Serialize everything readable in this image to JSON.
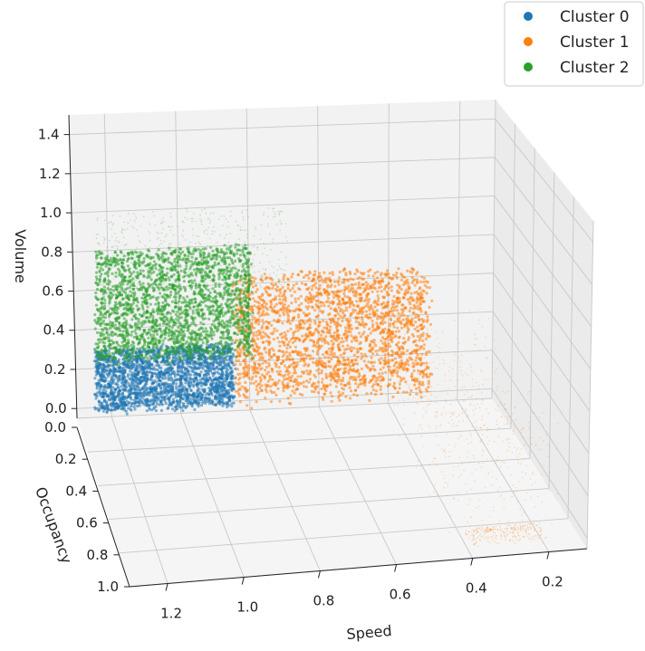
{
  "chart_data": {
    "type": "scatter",
    "projection": "3d",
    "title": "",
    "xlabel": "Speed",
    "ylabel": "Occupancy",
    "zlabel": "Volume",
    "x_ticks": [
      "1.2",
      "1.0",
      "0.8",
      "0.6",
      "0.4",
      "0.2"
    ],
    "y_ticks": [
      "0.0",
      "0.2",
      "0.4",
      "0.6",
      "0.8",
      "1.0"
    ],
    "z_ticks": [
      "0.0",
      "0.2",
      "0.4",
      "0.6",
      "0.8",
      "1.0",
      "1.2",
      "1.4"
    ],
    "xlim": [
      0.1,
      1.3
    ],
    "ylim": [
      0.0,
      1.0
    ],
    "zlim": [
      -0.05,
      1.5
    ],
    "grid": true,
    "legend_position": "top-right",
    "series": [
      {
        "name": "Cluster 0",
        "color": "#1f77b4",
        "regions": [
          {
            "speed": [
              0.85,
              1.25
            ],
            "occupancy": [
              0.0,
              0.05
            ],
            "volume": [
              0.0,
              0.3
            ],
            "density": "high"
          }
        ]
      },
      {
        "name": "Cluster 1",
        "color": "#ff7f0e",
        "regions": [
          {
            "speed": [
              0.3,
              0.85
            ],
            "occupancy": [
              0.0,
              0.12
            ],
            "volume": [
              0.05,
              0.65
            ],
            "density": "high"
          },
          {
            "speed": [
              0.15,
              0.45
            ],
            "occupancy": [
              0.1,
              1.0
            ],
            "volume": [
              0.0,
              0.5
            ],
            "density": "sparse"
          },
          {
            "speed": [
              0.2,
              0.4
            ],
            "occupancy": [
              0.9,
              1.0
            ],
            "volume": [
              0.0,
              0.02
            ],
            "density": "band"
          }
        ]
      },
      {
        "name": "Cluster 2",
        "color": "#2ca02c",
        "regions": [
          {
            "speed": [
              0.8,
              1.25
            ],
            "occupancy": [
              0.0,
              0.05
            ],
            "volume": [
              0.25,
              0.8
            ],
            "density": "high"
          },
          {
            "speed": [
              0.7,
              1.25
            ],
            "occupancy": [
              0.0,
              0.05
            ],
            "volume": [
              0.6,
              1.0
            ],
            "density": "sparse"
          }
        ]
      }
    ]
  }
}
